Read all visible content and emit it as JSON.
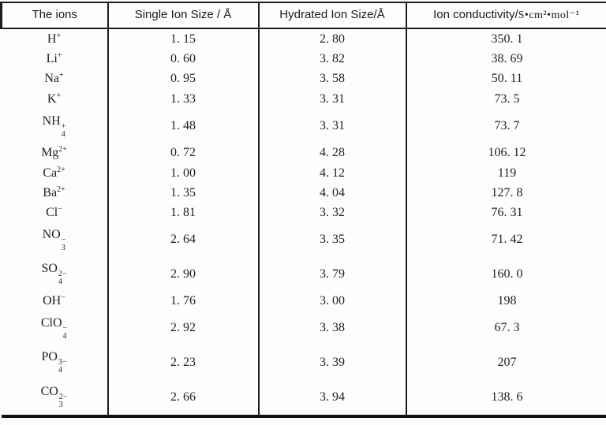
{
  "page": {
    "kind": "scanned-data-table",
    "background_color": "#fdfdfc"
  },
  "colors": {
    "text": "#1f1f1f",
    "line": "#1c1c1c",
    "bottom_rule": "#111111"
  },
  "table": {
    "headers": [
      {
        "label": "The ions"
      },
      {
        "label": "Single Ion Size / Å"
      },
      {
        "label": "Hydrated Ion Size/Å"
      },
      {
        "label": "Ion conductivity/",
        "unit": "S•cm²•mol⁻¹"
      }
    ],
    "rows": [
      {
        "ion": {
          "base": "H",
          "sup": "+"
        },
        "single_ion_size": "1. 15",
        "hydrated_ion_size": "2. 80",
        "ion_conductivity": "350. 1"
      },
      {
        "ion": {
          "base": "Li",
          "sup": "+"
        },
        "single_ion_size": "0. 60",
        "hydrated_ion_size": "3. 82",
        "ion_conductivity": "38. 69"
      },
      {
        "ion": {
          "base": "Na",
          "sup": "+"
        },
        "single_ion_size": "0. 95",
        "hydrated_ion_size": "3. 58",
        "ion_conductivity": "50. 11"
      },
      {
        "ion": {
          "base": "K",
          "sup": "+"
        },
        "single_ion_size": "1. 33",
        "hydrated_ion_size": "3. 31",
        "ion_conductivity": "73. 5"
      },
      {
        "ion": {
          "base": "NH",
          "sub": "4",
          "sup": "+"
        },
        "single_ion_size": "1. 48",
        "hydrated_ion_size": "3. 31",
        "ion_conductivity": "73. 7"
      },
      {
        "ion": {
          "base": "Mg",
          "sup": "2+"
        },
        "single_ion_size": "0. 72",
        "hydrated_ion_size": "4. 28",
        "ion_conductivity": "106. 12"
      },
      {
        "ion": {
          "base": "Ca",
          "sup": "2+"
        },
        "single_ion_size": "1. 00",
        "hydrated_ion_size": "4. 12",
        "ion_conductivity": "119"
      },
      {
        "ion": {
          "base": "Ba",
          "sup": "2+"
        },
        "single_ion_size": "1. 35",
        "hydrated_ion_size": "4. 04",
        "ion_conductivity": "127. 8"
      },
      {
        "ion": {
          "base": "Cl",
          "sup": "−"
        },
        "single_ion_size": "1. 81",
        "hydrated_ion_size": "3. 32",
        "ion_conductivity": "76. 31"
      },
      {
        "ion": {
          "base": "NO",
          "sub": "3",
          "sup": "−"
        },
        "single_ion_size": "2. 64",
        "hydrated_ion_size": "3. 35",
        "ion_conductivity": "71. 42"
      },
      {
        "ion": {
          "base": "SO",
          "sub": "4",
          "sup": "2−"
        },
        "single_ion_size": "2. 90",
        "hydrated_ion_size": "3. 79",
        "ion_conductivity": "160. 0"
      },
      {
        "ion": {
          "base": "OH",
          "sup": "−"
        },
        "single_ion_size": "1. 76",
        "hydrated_ion_size": "3. 00",
        "ion_conductivity": "198"
      },
      {
        "ion": {
          "base": "ClO",
          "sub": "4",
          "sup": "−"
        },
        "single_ion_size": "2. 92",
        "hydrated_ion_size": "3. 38",
        "ion_conductivity": "67. 3"
      },
      {
        "ion": {
          "base": "PO",
          "sub": "4",
          "sup": "3−"
        },
        "single_ion_size": "2. 23",
        "hydrated_ion_size": "3. 39",
        "ion_conductivity": "207"
      },
      {
        "ion": {
          "base": "CO",
          "sub": "3",
          "sup": "2−"
        },
        "single_ion_size": "2. 66",
        "hydrated_ion_size": "3. 94",
        "ion_conductivity": "138. 6"
      }
    ]
  }
}
